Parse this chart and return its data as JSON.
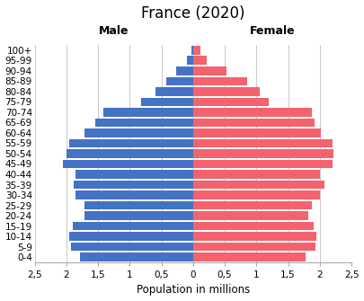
{
  "title": "France (2020)",
  "xlabel": "Population in millions",
  "male_label": "Male",
  "female_label": "Female",
  "age_groups": [
    "0-4",
    "5-9",
    "10-14",
    "15-19",
    "20-24",
    "25-29",
    "30-34",
    "35-39",
    "40-44",
    "45-49",
    "50-54",
    "55-59",
    "60-64",
    "65-69",
    "70-74",
    "75-79",
    "80-84",
    "85-89",
    "90-94",
    "95-99",
    "100+"
  ],
  "male": [
    1.78,
    1.93,
    1.96,
    1.9,
    1.72,
    1.72,
    1.85,
    1.88,
    1.85,
    2.05,
    2.0,
    1.95,
    1.72,
    1.55,
    1.42,
    0.82,
    0.6,
    0.43,
    0.27,
    0.1,
    0.03
  ],
  "female": [
    1.78,
    1.93,
    1.95,
    1.9,
    1.82,
    1.88,
    2.0,
    2.07,
    2.0,
    2.2,
    2.22,
    2.2,
    2.02,
    1.92,
    1.88,
    1.2,
    1.05,
    0.85,
    0.52,
    0.22,
    0.11
  ],
  "male_color": "#4472C4",
  "female_color": "#F4626E",
  "xlim": 2.5,
  "tick_labels": [
    "2,5",
    "2",
    "1,5",
    "1",
    "0,5",
    "0",
    "0,5",
    "1",
    "1,5",
    "2",
    "2,5"
  ],
  "background_color": "#ffffff",
  "grid_color": "#c0c0c0",
  "title_fontsize": 12,
  "label_fontsize": 8.5,
  "tick_fontsize": 7.5,
  "bar_height": 0.85
}
